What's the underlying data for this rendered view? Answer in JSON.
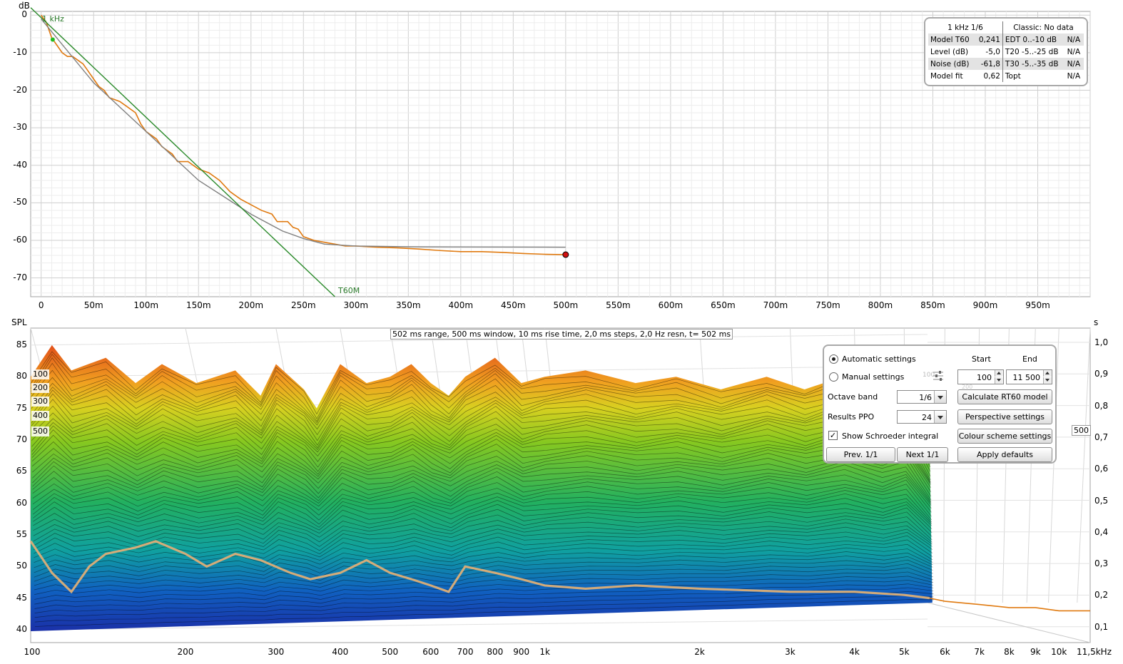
{
  "decay_chart": {
    "y_unit": "dB",
    "band_label": "1 kHz",
    "line_label": "T60M",
    "y_ticks": [
      "0",
      "-10",
      "-20",
      "-30",
      "-40",
      "-50",
      "-60",
      "-70"
    ],
    "x_ticks": [
      "0",
      "50m",
      "100m",
      "150m",
      "200m",
      "250m",
      "300m",
      "350m",
      "400m",
      "450m",
      "500m",
      "550m",
      "600m",
      "650m",
      "700m",
      "750m",
      "800m",
      "850m",
      "900m",
      "950m"
    ],
    "colors": {
      "decay": "#e07a10",
      "fit": "#808080",
      "t60": "#2a8a2a"
    }
  },
  "chart_data": [
    {
      "type": "line",
      "x_unit": "ms",
      "y_unit": "dB",
      "xlim": [
        -10,
        1000
      ],
      "ylim": [
        -75,
        1
      ],
      "series": [
        {
          "values": [
            [
              0,
              0
            ],
            [
              5,
              -2
            ],
            [
              10,
              -6
            ],
            [
              15,
              -8
            ],
            [
              20,
              -10
            ],
            [
              25,
              -11
            ],
            [
              30,
              -11
            ],
            [
              35,
              -12
            ],
            [
              40,
              -13
            ],
            [
              45,
              -15
            ],
            [
              50,
              -17
            ],
            [
              55,
              -19
            ],
            [
              60,
              -20
            ],
            [
              65,
              -22
            ],
            [
              70,
              -22.5
            ],
            [
              75,
              -23
            ],
            [
              80,
              -24
            ],
            [
              90,
              -26
            ],
            [
              95,
              -29
            ],
            [
              100,
              -31
            ],
            [
              105,
              -32
            ],
            [
              110,
              -33
            ],
            [
              115,
              -35
            ],
            [
              120,
              -36
            ],
            [
              125,
              -37
            ],
            [
              130,
              -39
            ],
            [
              140,
              -39
            ],
            [
              145,
              -40
            ],
            [
              150,
              -41
            ],
            [
              160,
              -42
            ],
            [
              170,
              -44
            ],
            [
              180,
              -47
            ],
            [
              190,
              -49
            ],
            [
              200,
              -50.5
            ],
            [
              210,
              -52
            ],
            [
              220,
              -53
            ],
            [
              225,
              -55
            ],
            [
              235,
              -55
            ],
            [
              240,
              -56.5
            ],
            [
              245,
              -57
            ],
            [
              250,
              -59
            ],
            [
              260,
              -60
            ],
            [
              270,
              -60.5
            ],
            [
              280,
              -61
            ],
            [
              290,
              -61.5
            ],
            [
              300,
              -61.5
            ],
            [
              320,
              -61.8
            ],
            [
              340,
              -62
            ],
            [
              360,
              -62.3
            ],
            [
              380,
              -62.7
            ],
            [
              400,
              -63
            ],
            [
              420,
              -63
            ],
            [
              440,
              -63.2
            ],
            [
              460,
              -63.5
            ],
            [
              480,
              -63.7
            ],
            [
              500,
              -63.8
            ]
          ]
        },
        {
          "values": [
            [
              0,
              -1
            ],
            [
              50,
              -18
            ],
            [
              100,
              -31
            ],
            [
              150,
              -44
            ],
            [
              200,
              -53
            ],
            [
              230,
              -57.5
            ],
            [
              250,
              -59.5
            ],
            [
              270,
              -61
            ],
            [
              300,
              -61.5
            ],
            [
              350,
              -61.7
            ],
            [
              500,
              -61.8
            ]
          ]
        },
        {
          "values": [
            [
              -10,
              2
            ],
            [
              280,
              -75
            ]
          ]
        }
      ]
    },
    {
      "type": "area",
      "x_scale": "log",
      "x_unit": "Hz",
      "y_unit": "dB SPL",
      "xlim": [
        100,
        11500
      ],
      "ylim": [
        38,
        87
      ],
      "series": [
        {
          "values": [
            [
              100,
              80
            ],
            [
              110,
              85
            ],
            [
              120,
              81
            ],
            [
              140,
              83
            ],
            [
              160,
              79
            ],
            [
              180,
              82
            ],
            [
              210,
              79
            ],
            [
              250,
              81
            ],
            [
              280,
              77
            ],
            [
              300,
              82
            ],
            [
              340,
              78
            ],
            [
              360,
              75
            ],
            [
              400,
              82
            ],
            [
              450,
              79
            ],
            [
              500,
              80
            ],
            [
              550,
              82
            ],
            [
              600,
              79
            ],
            [
              650,
              77
            ],
            [
              700,
              80
            ],
            [
              800,
              83
            ],
            [
              900,
              79
            ],
            [
              1000,
              80
            ],
            [
              1200,
              81
            ],
            [
              1500,
              79
            ],
            [
              1800,
              80
            ],
            [
              2200,
              78
            ],
            [
              2700,
              80
            ],
            [
              3200,
              78
            ],
            [
              3800,
              80
            ],
            [
              4500,
              77
            ],
            [
              5000,
              79
            ],
            [
              5600,
              70
            ]
          ]
        },
        {
          "values": [
            [
              100,
              54
            ],
            [
              110,
              49
            ],
            [
              120,
              46
            ],
            [
              130,
              50
            ],
            [
              140,
              52
            ],
            [
              160,
              53
            ],
            [
              175,
              54
            ],
            [
              200,
              52
            ],
            [
              220,
              50
            ],
            [
              250,
              52
            ],
            [
              280,
              51
            ],
            [
              320,
              49
            ],
            [
              350,
              48
            ],
            [
              400,
              49
            ],
            [
              450,
              51
            ],
            [
              500,
              49
            ],
            [
              550,
              48
            ],
            [
              600,
              47
            ],
            [
              650,
              46
            ],
            [
              700,
              50
            ],
            [
              800,
              49
            ],
            [
              900,
              48
            ],
            [
              1000,
              47
            ],
            [
              1200,
              46.5
            ],
            [
              1500,
              47
            ],
            [
              2000,
              46.5
            ],
            [
              3000,
              46
            ],
            [
              4000,
              46
            ],
            [
              5000,
              45.5
            ],
            [
              5600,
              45
            ],
            [
              6000,
              44.5
            ],
            [
              7000,
              44
            ],
            [
              8000,
              43.5
            ],
            [
              9000,
              43.5
            ],
            [
              10000,
              43
            ],
            [
              11500,
              43
            ]
          ]
        }
      ]
    }
  ],
  "waterfall": {
    "y_unit": "SPL",
    "right_unit": "s",
    "y_ticks": [
      "85",
      "80",
      "75",
      "70",
      "65",
      "60",
      "55",
      "50",
      "45",
      "40"
    ],
    "right_ticks": [
      "1,0",
      "0,9",
      "0,8",
      "0,7",
      "0,6",
      "0,5",
      "0,4",
      "0,3",
      "0,2",
      "0,1"
    ],
    "x_ticks": [
      "100",
      "200",
      "300",
      "400",
      "500",
      "600",
      "700",
      "800",
      "900",
      "1k",
      "2k",
      "3k",
      "4k",
      "5k",
      "6k",
      "7k",
      "8k",
      "9k",
      "10k",
      "11,5kHz"
    ],
    "info": "502 ms range, 500 ms window, 10 ms rise time, 2,0 ms steps,  2,0 Hz resn, t= 502 ms",
    "slice_labels": [
      "100",
      "200",
      "300",
      "400",
      "500"
    ],
    "right_tag": "500",
    "colors": {
      "schroeder": "#e07a10",
      "overlay": "#d8b080",
      "high": "#e2501a",
      "mid": "#86c820",
      "low": "#1a30a8"
    }
  },
  "t60_panel": {
    "head_left": "1 kHz 1/6",
    "head_right": "Classic: No data",
    "rows": [
      {
        "label": "Model T60",
        "value": "0,241",
        "label2": "EDT  0..-10 dB",
        "value2": "N/A"
      },
      {
        "label": "Level (dB)",
        "value": "-5,0",
        "label2": "T20 -5..-25 dB",
        "value2": "N/A"
      },
      {
        "label": "Noise (dB)",
        "value": "-61,8",
        "label2": "T30 -5..-35 dB",
        "value2": "N/A"
      },
      {
        "label": "Model fit",
        "value": "0,62",
        "label2": "Topt",
        "value2": "N/A"
      }
    ]
  },
  "settings_panel": {
    "automatic_label": "Automatic settings",
    "manual_label": "Manual settings",
    "start_label": "Start",
    "end_label": "End",
    "start_value": "100",
    "end_value": "11 500",
    "octave_label": "Octave band",
    "octave_value": "1/6",
    "ppo_label": "Results PPO",
    "ppo_value": "24",
    "schroeder_label": "Show Schroeder integral",
    "calc_button": "Calculate RT60 model",
    "perspective_button": "Perspective settings",
    "colour_button": "Colour scheme settings",
    "prev_button": "Prev. 1/1",
    "next_button": "Next 1/1",
    "defaults_button": "Apply defaults",
    "ghost_value": "100",
    "ghost_value2": "200"
  }
}
